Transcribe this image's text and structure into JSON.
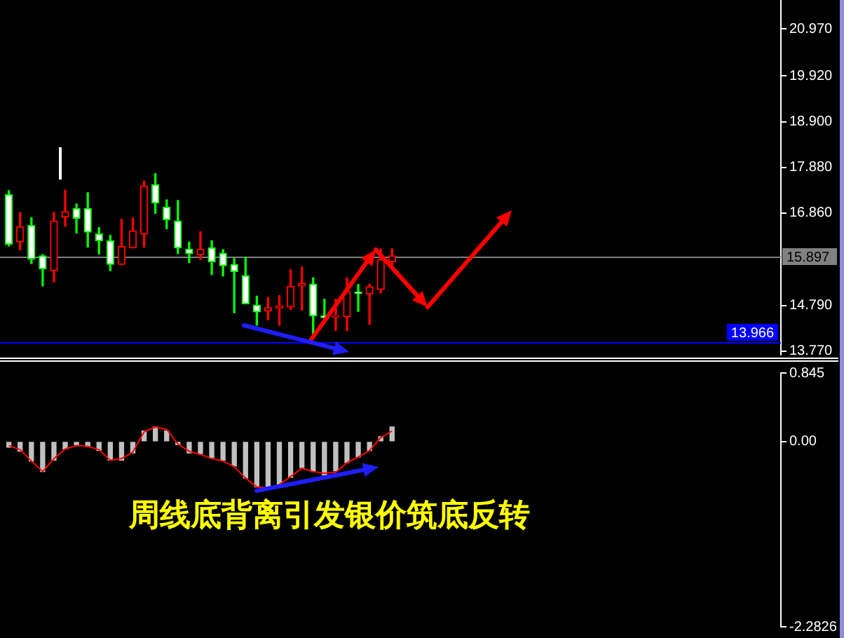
{
  "chart_data": [
    {
      "type": "candlestick",
      "categories": [
        null,
        null,
        null,
        null,
        null,
        null,
        null,
        null,
        null,
        null,
        null,
        null,
        null,
        null,
        null,
        null,
        null,
        null,
        null,
        null,
        null,
        null,
        null,
        null,
        null,
        null,
        null,
        null,
        null,
        null,
        null,
        null,
        null,
        null,
        null,
        null,
        null,
        null,
        null,
        null,
        null,
        null,
        null,
        null,
        null,
        null,
        null,
        null,
        null,
        null,
        null,
        null,
        null,
        null,
        null,
        null,
        null,
        null,
        null,
        null,
        null,
        null,
        null,
        null,
        null,
        null,
        null,
        null,
        null
      ],
      "ohlc": [
        [
          17.27,
          17.36,
          16.12,
          16.16
        ],
        [
          16.21,
          16.87,
          16.03,
          16.55
        ],
        [
          16.58,
          16.75,
          15.73,
          15.83
        ],
        [
          15.9,
          15.93,
          15.23,
          15.61
        ],
        [
          15.57,
          16.87,
          15.32,
          16.68
        ],
        [
          16.77,
          17.37,
          16.56,
          16.89
        ],
        [
          16.96,
          17.06,
          16.41,
          16.74
        ],
        [
          16.96,
          17.31,
          16.1,
          16.43
        ],
        [
          16.39,
          16.53,
          15.94,
          16.24
        ],
        [
          16.24,
          16.36,
          15.57,
          15.71
        ],
        [
          15.71,
          16.72,
          15.71,
          16.11
        ],
        [
          16.08,
          16.75,
          16.08,
          16.46
        ],
        [
          16.39,
          17.57,
          16.1,
          17.46
        ],
        [
          17.49,
          17.74,
          16.85,
          17.08
        ],
        [
          16.99,
          17.15,
          16.51,
          16.71
        ],
        [
          16.68,
          17.14,
          15.95,
          16.08
        ],
        [
          16.05,
          16.21,
          15.75,
          15.95
        ],
        [
          15.93,
          16.44,
          15.82,
          16.05
        ],
        [
          16.08,
          16.24,
          15.48,
          15.77
        ],
        [
          15.96,
          16.04,
          15.45,
          15.68
        ],
        [
          15.71,
          15.84,
          14.63,
          15.55
        ],
        [
          15.46,
          15.87,
          14.83,
          14.83
        ],
        [
          14.8,
          15.0,
          14.35,
          14.65
        ],
        [
          14.67,
          14.97,
          14.47,
          14.74
        ],
        [
          14.73,
          15.01,
          14.35,
          14.78
        ],
        [
          14.76,
          15.59,
          14.7,
          15.22
        ],
        [
          15.23,
          15.65,
          14.69,
          15.29
        ],
        [
          15.27,
          15.41,
          14.07,
          14.56
        ],
        [
          14.56,
          14.93,
          14.51,
          14.52
        ],
        [
          14.53,
          14.93,
          14.23,
          14.56
        ],
        [
          14.54,
          15.41,
          14.23,
          15.11
        ],
        [
          15.09,
          15.26,
          14.66,
          15.06
        ],
        [
          15.05,
          15.27,
          14.37,
          15.21
        ],
        [
          15.15,
          16.05,
          15.07,
          15.82
        ],
        [
          15.77,
          16.06,
          15.7,
          15.9
        ],
        null,
        null,
        null,
        null,
        null,
        null,
        null,
        null,
        null,
        null,
        null,
        null,
        null,
        null,
        null,
        null,
        null,
        null,
        null,
        null,
        null,
        null,
        null,
        null,
        null,
        null,
        null,
        null,
        null,
        null,
        null,
        null,
        null,
        null
      ],
      "colors": [
        "#00ff00",
        "#ff0000",
        "#00ff00",
        "#00ff00",
        "#ff0000",
        "#ff0000",
        "#00ff00",
        "#00ff00",
        "#00ff00",
        "#00ff00",
        "#ff0000",
        "#ff0000",
        "#ff0000",
        "#00ff00",
        "#00ff00",
        "#00ff00",
        "#00ff00",
        "#ff0000",
        "#00ff00",
        "#00ff00",
        "#00ff00",
        "#00ff00",
        "#00ff00",
        "#ff0000",
        "#ff0000",
        "#ff0000",
        "#ff0000",
        "#00ff00",
        "#00ff00",
        "#ff0000",
        "#ff0000",
        "#00ff00",
        "#ff0000",
        "#ff0000",
        "#ff0000",
        null,
        null,
        null,
        null,
        null,
        null,
        null,
        null,
        null,
        null,
        null,
        null,
        null,
        null,
        null,
        null,
        null,
        null,
        null,
        null,
        null,
        null,
        null,
        null,
        null,
        null,
        null,
        null,
        null,
        null,
        null,
        null,
        null,
        null
      ],
      "ylim": [
        13.69,
        21.62
      ],
      "yticks": [
        {
          "value": 20.97,
          "label": "20.970"
        },
        {
          "value": 19.92,
          "label": "19.920"
        },
        {
          "value": 18.9,
          "label": "18.900"
        },
        {
          "value": 17.88,
          "label": "17.880"
        },
        {
          "value": 16.86,
          "label": "16.860"
        },
        {
          "value": 14.79,
          "label": "14.790"
        },
        {
          "value": 13.77,
          "label": "13.770"
        }
      ],
      "ref_lines": [
        {
          "axis": "y",
          "value": 15.897,
          "label": "15.897",
          "color": "#808080"
        },
        {
          "axis": "y",
          "value": 13.966,
          "label": "13.966",
          "color": "#0000ff"
        }
      ]
    },
    {
      "type": "bar",
      "categories": [
        null,
        null,
        null,
        null,
        null,
        null,
        null,
        null,
        null,
        null,
        null,
        null,
        null,
        null,
        null,
        null,
        null,
        null,
        null,
        null,
        null,
        null,
        null,
        null,
        null,
        null,
        null,
        null,
        null,
        null,
        null,
        null,
        null,
        null,
        null,
        null,
        null,
        null,
        null,
        null,
        null,
        null,
        null,
        null,
        null,
        null,
        null,
        null,
        null,
        null,
        null,
        null,
        null,
        null,
        null,
        null,
        null,
        null,
        null,
        null,
        null,
        null,
        null,
        null,
        null,
        null,
        null,
        null,
        null
      ],
      "series": [
        {
          "type": "bar",
          "color": "#c0c0c0",
          "values": [
            -0.07,
            -0.12,
            -0.24,
            -0.37,
            -0.23,
            -0.09,
            -0.04,
            -0.06,
            -0.11,
            -0.23,
            -0.23,
            -0.14,
            0.13,
            0.18,
            0.13,
            -0.04,
            -0.14,
            -0.15,
            -0.2,
            -0.23,
            -0.3,
            -0.45,
            -0.56,
            -0.58,
            -0.54,
            -0.44,
            -0.32,
            -0.37,
            -0.41,
            -0.36,
            -0.26,
            -0.19,
            -0.11,
            0.06,
            0.18,
            null,
            null,
            null,
            null,
            null,
            null,
            null,
            null,
            null,
            null,
            null,
            null,
            null,
            null,
            null,
            null,
            null,
            null,
            null,
            null,
            null,
            null,
            null,
            null,
            null,
            null,
            null,
            null,
            null,
            null,
            null,
            null,
            null,
            null
          ]
        },
        {
          "type": "line",
          "color": "#ff0000",
          "values": [
            -0.05,
            -0.1,
            -0.24,
            -0.37,
            -0.21,
            -0.09,
            -0.05,
            -0.06,
            -0.1,
            -0.23,
            -0.21,
            -0.13,
            0.12,
            0.18,
            0.15,
            -0.03,
            -0.12,
            -0.16,
            -0.21,
            -0.24,
            -0.31,
            -0.45,
            -0.56,
            -0.57,
            -0.53,
            -0.43,
            -0.33,
            -0.37,
            -0.39,
            -0.38,
            -0.26,
            -0.19,
            -0.11,
            0.05,
            0.13,
            null,
            null,
            null,
            null,
            null,
            null,
            null,
            null,
            null,
            null,
            null,
            null,
            null,
            null,
            null,
            null,
            null,
            null,
            null,
            null,
            null,
            null,
            null,
            null,
            null,
            null,
            null,
            null,
            null,
            null,
            null,
            null,
            null,
            null
          ]
        }
      ],
      "ylim": [
        -2.2826,
        0.845
      ],
      "yticks": [
        0.845,
        {
          "value": 0,
          "label": "0.00"
        },
        -2.2826
      ],
      "annotations": [
        "周线底背离引发银价筑底反转"
      ]
    }
  ]
}
